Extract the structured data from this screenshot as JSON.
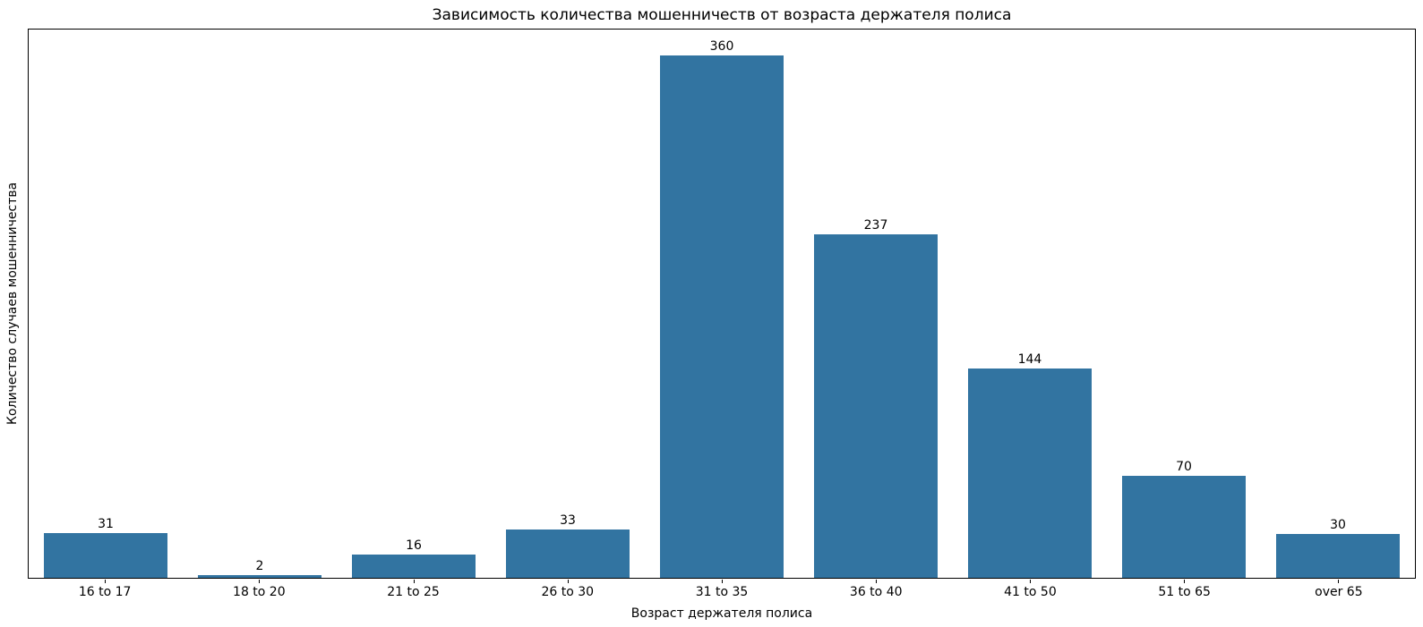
{
  "chart_data": {
    "type": "bar",
    "title": "Зависимость количества мошенничеств от возраста держателя полиса",
    "xlabel": "Возраст держателя полиса",
    "ylabel": "Количество случаев мошенничества",
    "categories": [
      "16 to 17",
      "18 to 20",
      "21 to 25",
      "26 to 30",
      "31 to 35",
      "36 to 40",
      "41 to 50",
      "51 to 65",
      "over 65"
    ],
    "values": [
      31,
      2,
      16,
      33,
      360,
      237,
      144,
      70,
      30
    ],
    "ylim": [
      0,
      378
    ],
    "bar_color": "#3274a1",
    "bar_width_fraction": 0.8,
    "grid": false,
    "legend": "none",
    "value_labels_shown": true,
    "background_color": "#ffffff",
    "spine_color": "#000000"
  }
}
